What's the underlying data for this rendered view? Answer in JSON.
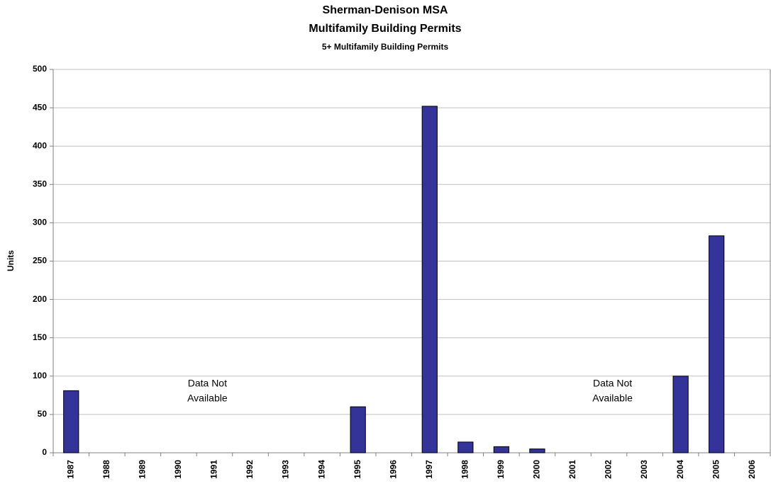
{
  "chart_data": {
    "type": "bar",
    "title": "Sherman-Denison MSA",
    "subtitle": "Multifamily Building Permits",
    "subtitle2": "5+ Multifamily Building Permits",
    "y_label": "Units",
    "categories": [
      "1987",
      "1988",
      "1989",
      "1990",
      "1991",
      "1992",
      "1993",
      "1994",
      "1995",
      "1996",
      "1997",
      "1998",
      "1999",
      "2000",
      "2001",
      "2002",
      "2003",
      "2004",
      "2005",
      "2006"
    ],
    "values": [
      81,
      null,
      null,
      null,
      null,
      null,
      null,
      null,
      60,
      0,
      452,
      14,
      8,
      5,
      null,
      null,
      null,
      100,
      283,
      null
    ],
    "color": "#333399",
    "ylim": [
      0,
      500
    ],
    "yticks": [
      0,
      50,
      100,
      150,
      200,
      250,
      300,
      350,
      400,
      450,
      500
    ],
    "grid": true,
    "annotations": [
      [
        "Data Not",
        "Available"
      ],
      [
        "Data Not",
        "Available"
      ]
    ]
  }
}
